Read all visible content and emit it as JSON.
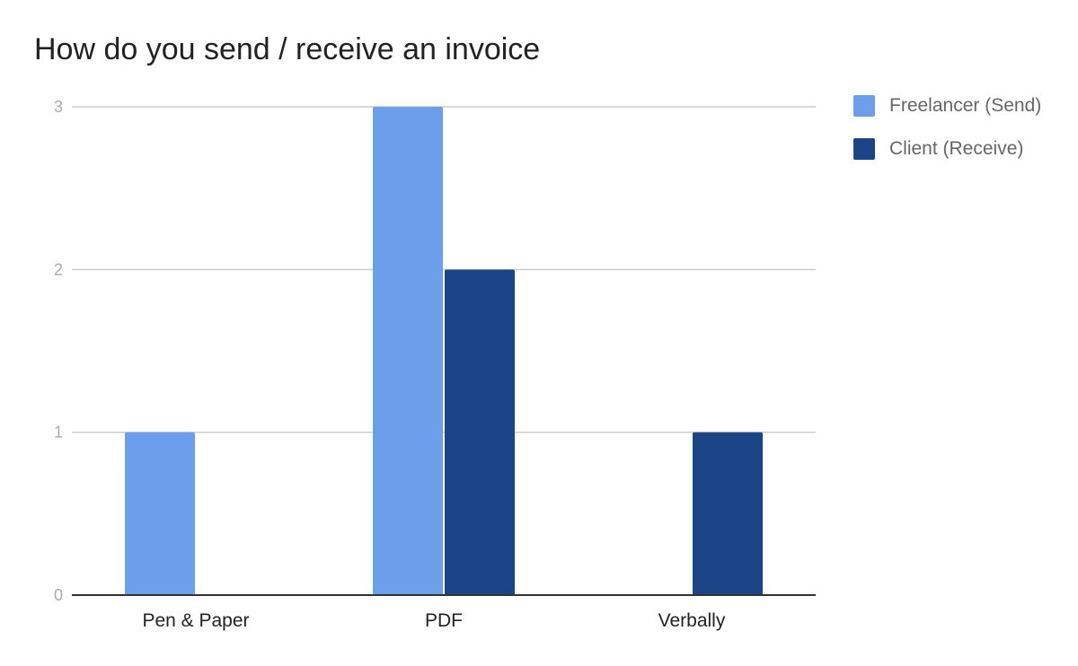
{
  "chart_data": {
    "type": "bar",
    "title": "How do you send / receive an invoice",
    "categories": [
      "Pen & Paper",
      "PDF",
      "Verbally"
    ],
    "series": [
      {
        "name": "Freelancer (Send)",
        "values": [
          1,
          3,
          0
        ],
        "color": "#6d9eeb"
      },
      {
        "name": "Client (Receive)",
        "values": [
          0,
          2,
          1
        ],
        "color": "#1c4587"
      }
    ],
    "xlabel": "",
    "ylabel": "",
    "ylim": [
      0,
      3
    ],
    "yticks": [
      0,
      1,
      2,
      3
    ],
    "grid": true,
    "legend": "right"
  }
}
